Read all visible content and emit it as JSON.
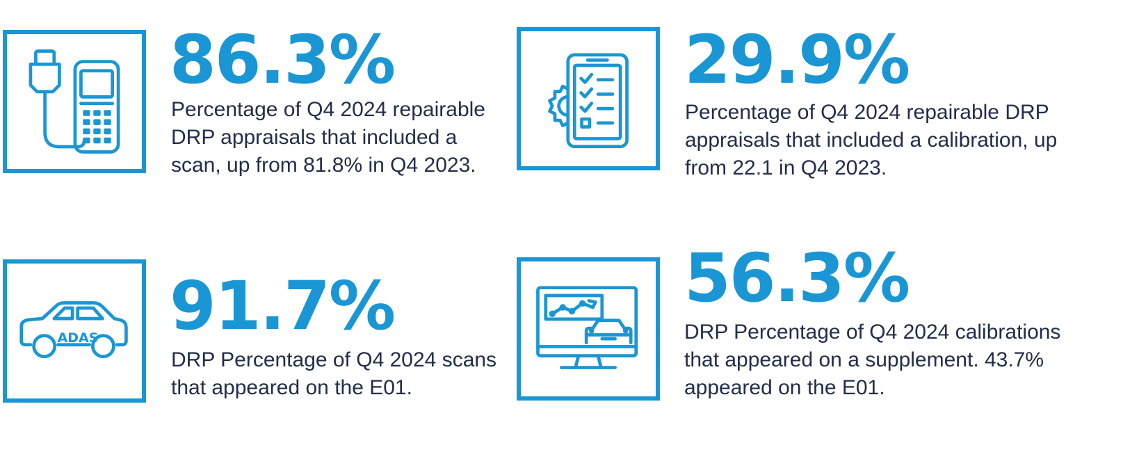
{
  "accent_color": "#1a96d4",
  "text_color": "#222d4a",
  "stats": [
    {
      "value": "86.3%",
      "icon": "scan-tool-icon",
      "lines": [
        "Percentage of Q4 2024 repairable",
        "DRP appraisals that included a",
        "scan, up from 81.8% in Q4 2023."
      ]
    },
    {
      "value": "29.9%",
      "icon": "calibration-checklist-icon",
      "lines": [
        "Percentage of Q4 2024 repairable DRP",
        "appraisals that included a calibration, up",
        "from 22.1 in Q4 2023."
      ]
    },
    {
      "value": "91.7%",
      "icon": "adas-car-icon",
      "icon_text": "ADAS",
      "lines": [
        "DRP Percentage of Q4 2024 scans",
        "that appeared on the E01."
      ]
    },
    {
      "value": "56.3%",
      "icon": "monitor-car-icon",
      "lines": [
        "DRP Percentage of Q4 2024 calibrations",
        "that appeared on a supplement. 43.7%",
        "appeared on the E01."
      ]
    }
  ]
}
